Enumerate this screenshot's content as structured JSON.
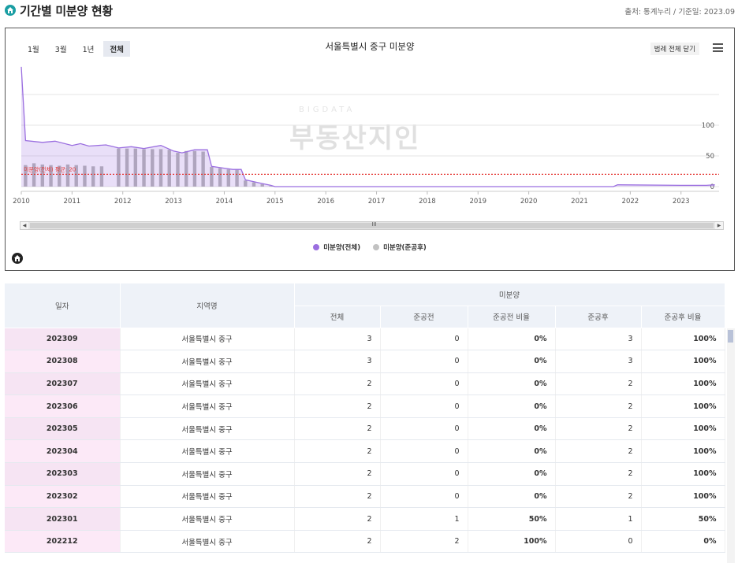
{
  "header": {
    "title": "기간별 미분양 현황",
    "source": "출처: 통계누리 / 기준일: 2023.09"
  },
  "chart_panel": {
    "range_buttons": [
      "1월",
      "3월",
      "1년",
      "전체"
    ],
    "active_range": "전체",
    "legend_toggle_label": "범례 전체 닫기",
    "watermark_small": "BIGDATA",
    "watermark_big": "부동산지인",
    "scroll_grip": "III",
    "colors": {
      "total": "#9b6fe0",
      "completed": "#b5b5b5",
      "avg_line": "#e53935"
    }
  },
  "chart_data": {
    "type": "area",
    "title": "서울특별시 중구 미분양",
    "x_ticks": [
      "2010",
      "2011",
      "2012",
      "2013",
      "2014",
      "2015",
      "2016",
      "2017",
      "2018",
      "2019",
      "2020",
      "2021",
      "2022",
      "2023"
    ],
    "y_ticks": [
      0,
      50,
      100
    ],
    "ylim": [
      0,
      200
    ],
    "average_label": "미분양(전체) 평균: 20",
    "average_value": 20,
    "legend_position": "bottom",
    "series": [
      {
        "name": "미분양(전체)",
        "kind": "area",
        "color": "#9b6fe0",
        "points": [
          [
            "2010-01",
            195
          ],
          [
            "2010-02",
            75
          ],
          [
            "2010-06",
            72
          ],
          [
            "2010-09",
            74
          ],
          [
            "2011-01",
            67
          ],
          [
            "2011-03",
            70
          ],
          [
            "2011-05",
            66
          ],
          [
            "2011-09",
            68
          ],
          [
            "2011-12",
            63
          ],
          [
            "2012-03",
            65
          ],
          [
            "2012-06",
            62
          ],
          [
            "2012-10",
            67
          ],
          [
            "2013-01",
            58
          ],
          [
            "2013-03",
            55
          ],
          [
            "2013-06",
            60
          ],
          [
            "2013-09",
            60
          ],
          [
            "2013-10",
            33
          ],
          [
            "2014-01",
            30
          ],
          [
            "2014-03",
            28
          ],
          [
            "2014-05",
            28
          ],
          [
            "2014-06",
            11
          ],
          [
            "2014-08",
            8
          ],
          [
            "2014-10",
            5
          ],
          [
            "2014-12",
            2
          ],
          [
            "2015-01",
            0
          ],
          [
            "2021-09",
            0
          ],
          [
            "2021-10",
            3
          ],
          [
            "2023-01",
            2
          ],
          [
            "2023-07",
            2
          ],
          [
            "2023-09",
            3
          ]
        ]
      },
      {
        "name": "미분양(준공후)",
        "kind": "bar",
        "color": "#b5b5b5",
        "points": [
          [
            "2010-02",
            35
          ],
          [
            "2010-04",
            38
          ],
          [
            "2010-06",
            36
          ],
          [
            "2010-08",
            35
          ],
          [
            "2010-10",
            34
          ],
          [
            "2010-12",
            36
          ],
          [
            "2011-02",
            35
          ],
          [
            "2011-04",
            34
          ],
          [
            "2011-06",
            33
          ],
          [
            "2011-08",
            33
          ],
          [
            "2011-12",
            62
          ],
          [
            "2012-02",
            62
          ],
          [
            "2012-04",
            62
          ],
          [
            "2012-06",
            61
          ],
          [
            "2012-08",
            61
          ],
          [
            "2012-10",
            61
          ],
          [
            "2012-12",
            60
          ],
          [
            "2013-02",
            55
          ],
          [
            "2013-04",
            58
          ],
          [
            "2013-06",
            58
          ],
          [
            "2013-08",
            57
          ],
          [
            "2013-10",
            32
          ],
          [
            "2013-12",
            30
          ],
          [
            "2014-02",
            28
          ],
          [
            "2014-04",
            28
          ],
          [
            "2014-06",
            10
          ],
          [
            "2014-08",
            7
          ],
          [
            "2014-10",
            4
          ],
          [
            "2014-12",
            1
          ]
        ]
      }
    ]
  },
  "table": {
    "header_date": "일자",
    "header_region": "지역명",
    "header_group": "미분양",
    "sub_headers": [
      "전체",
      "준공전",
      "준공전 비율",
      "준공후",
      "준공후 비율"
    ],
    "rows": [
      {
        "date": "202309",
        "region": "서울특별시 중구",
        "total": "3",
        "pre": "0",
        "pre_ratio": "0%",
        "post": "3",
        "post_ratio": "100%"
      },
      {
        "date": "202308",
        "region": "서울특별시 중구",
        "total": "3",
        "pre": "0",
        "pre_ratio": "0%",
        "post": "3",
        "post_ratio": "100%"
      },
      {
        "date": "202307",
        "region": "서울특별시 중구",
        "total": "2",
        "pre": "0",
        "pre_ratio": "0%",
        "post": "2",
        "post_ratio": "100%"
      },
      {
        "date": "202306",
        "region": "서울특별시 중구",
        "total": "2",
        "pre": "0",
        "pre_ratio": "0%",
        "post": "2",
        "post_ratio": "100%"
      },
      {
        "date": "202305",
        "region": "서울특별시 중구",
        "total": "2",
        "pre": "0",
        "pre_ratio": "0%",
        "post": "2",
        "post_ratio": "100%"
      },
      {
        "date": "202304",
        "region": "서울특별시 중구",
        "total": "2",
        "pre": "0",
        "pre_ratio": "0%",
        "post": "2",
        "post_ratio": "100%"
      },
      {
        "date": "202303",
        "region": "서울특별시 중구",
        "total": "2",
        "pre": "0",
        "pre_ratio": "0%",
        "post": "2",
        "post_ratio": "100%"
      },
      {
        "date": "202302",
        "region": "서울특별시 중구",
        "total": "2",
        "pre": "0",
        "pre_ratio": "0%",
        "post": "2",
        "post_ratio": "100%"
      },
      {
        "date": "202301",
        "region": "서울특별시 중구",
        "total": "2",
        "pre": "1",
        "pre_ratio": "50%",
        "post": "1",
        "post_ratio": "50%"
      },
      {
        "date": "202212",
        "region": "서울특별시 중구",
        "total": "2",
        "pre": "2",
        "pre_ratio": "100%",
        "post": "0",
        "post_ratio": "0%"
      }
    ]
  }
}
